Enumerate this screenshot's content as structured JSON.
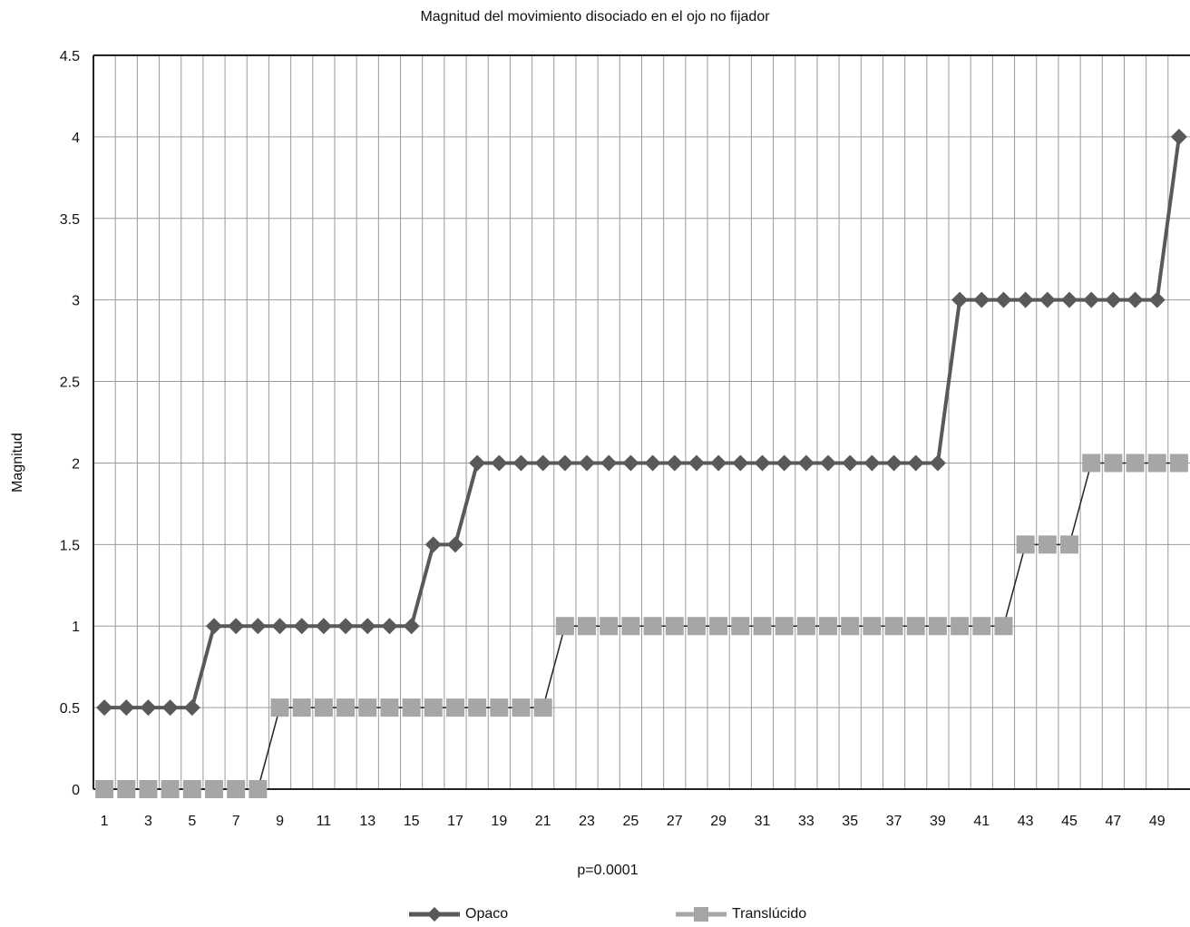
{
  "chart_data": {
    "type": "line",
    "title": "Magnitud del movimiento disociado en el ojo no fijador",
    "xlabel": "",
    "ylabel": "Magnitud",
    "annotation": "p=0.0001",
    "x": [
      1,
      2,
      3,
      4,
      5,
      6,
      7,
      8,
      9,
      10,
      11,
      12,
      13,
      14,
      15,
      16,
      17,
      18,
      19,
      20,
      21,
      22,
      23,
      24,
      25,
      26,
      27,
      28,
      29,
      30,
      31,
      32,
      33,
      34,
      35,
      36,
      37,
      38,
      39,
      40,
      41,
      42,
      43,
      44,
      45,
      46,
      47,
      48,
      49,
      50
    ],
    "x_tick_labels": [
      "1",
      "3",
      "5",
      "7",
      "9",
      "11",
      "13",
      "15",
      "17",
      "19",
      "21",
      "23",
      "25",
      "27",
      "29",
      "31",
      "33",
      "35",
      "37",
      "39",
      "41",
      "43",
      "45",
      "47",
      "49"
    ],
    "y_ticks": [
      "0",
      "0.5",
      "1",
      "1.5",
      "2",
      "2.5",
      "3",
      "3.5",
      "4",
      "4.5"
    ],
    "ylim": [
      0,
      4.5
    ],
    "grid": true,
    "legend_position": "bottom",
    "series": [
      {
        "name": "Opaco",
        "color": "#595959",
        "marker": "diamond",
        "values": [
          0.5,
          0.5,
          0.5,
          0.5,
          0.5,
          1,
          1,
          1,
          1,
          1,
          1,
          1,
          1,
          1,
          1,
          1.5,
          1.5,
          2,
          2,
          2,
          2,
          2,
          2,
          2,
          2,
          2,
          2,
          2,
          2,
          2,
          2,
          2,
          2,
          2,
          2,
          2,
          2,
          2,
          2,
          3,
          3,
          3,
          3,
          3,
          3,
          3,
          3,
          3,
          3,
          4
        ]
      },
      {
        "name": "Translúcido",
        "color": "#a6a6a6",
        "marker": "square",
        "values": [
          0,
          0,
          0,
          0,
          0,
          0,
          0,
          0,
          0.5,
          0.5,
          0.5,
          0.5,
          0.5,
          0.5,
          0.5,
          0.5,
          0.5,
          0.5,
          0.5,
          0.5,
          0.5,
          1,
          1,
          1,
          1,
          1,
          1,
          1,
          1,
          1,
          1,
          1,
          1,
          1,
          1,
          1,
          1,
          1,
          1,
          1,
          1,
          1,
          1.5,
          1.5,
          1.5,
          2,
          2,
          2,
          2,
          2
        ]
      }
    ]
  }
}
